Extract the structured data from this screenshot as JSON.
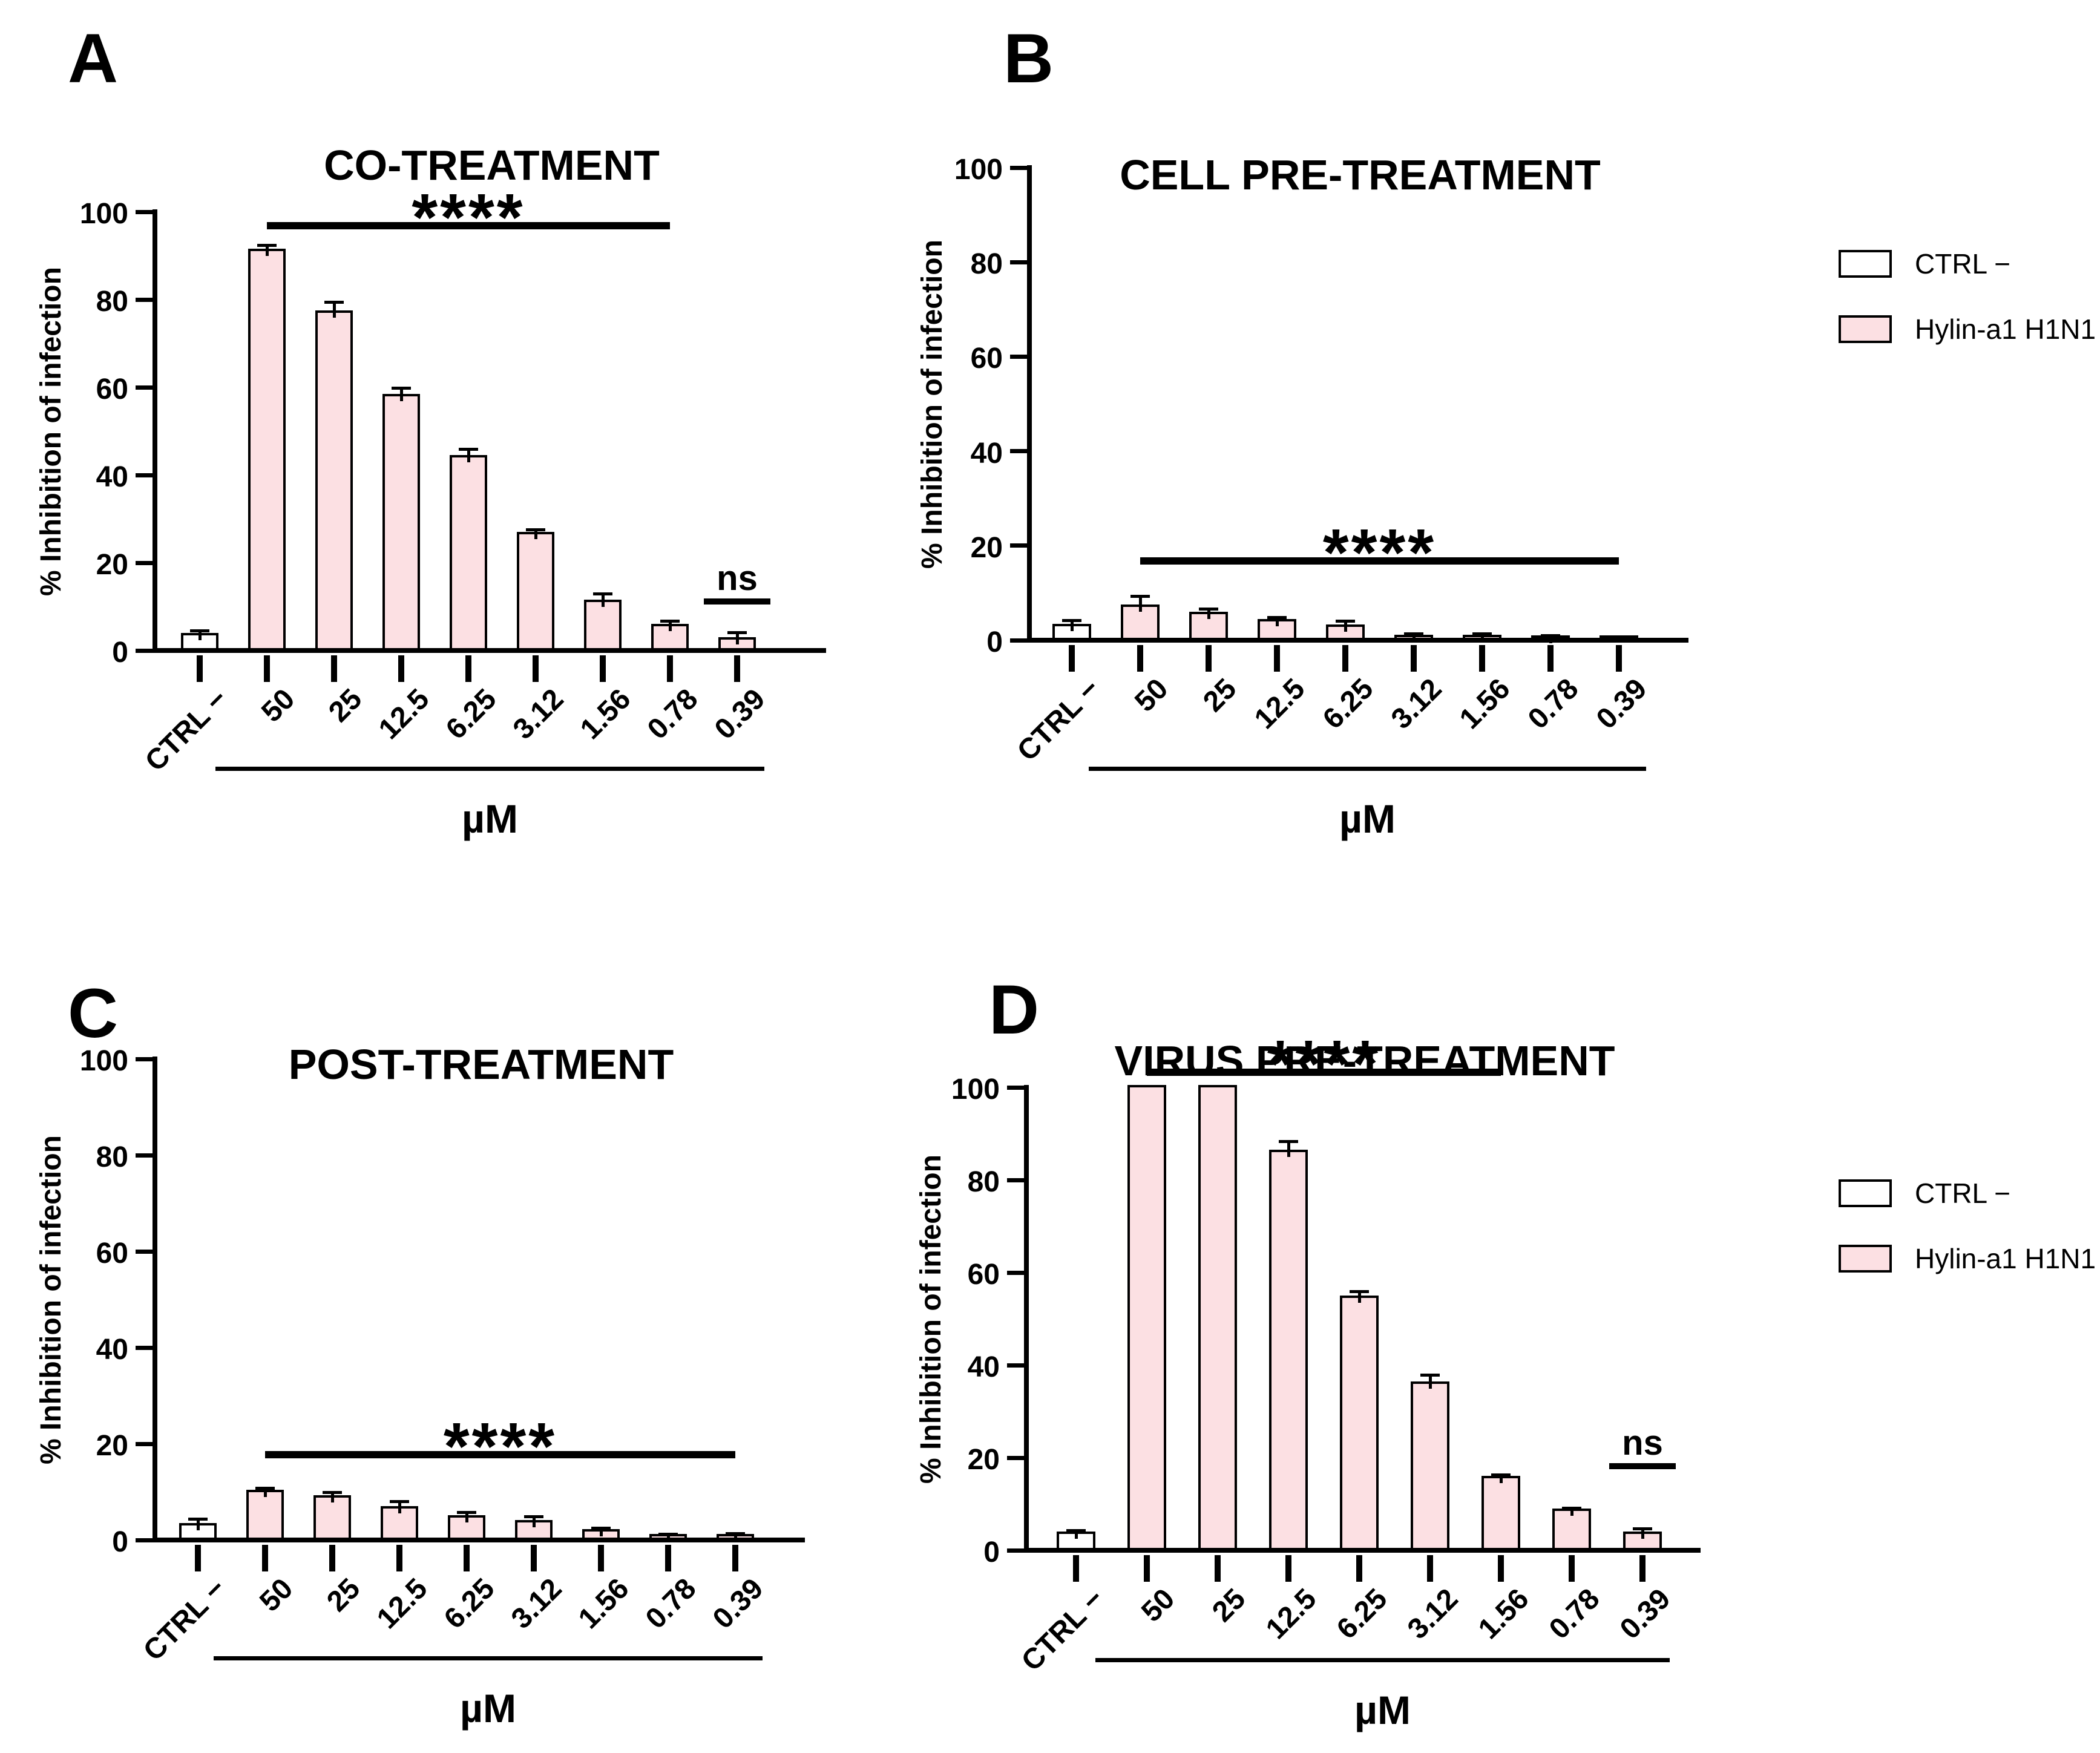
{
  "figure_title": "",
  "legend": {
    "entries": [
      {
        "label": "CTRL −",
        "color": "#ffffff"
      },
      {
        "label": "Hylin-a1 H1N1",
        "color": "#fce0e3"
      }
    ]
  },
  "chart_data": [
    {
      "id": "A",
      "type": "bar",
      "panel_letter": "A",
      "title": "CO-TREATMENT",
      "ylabel": "% Inhibition of infection",
      "xlabel": "µM",
      "ylim": [
        0,
        100
      ],
      "yticks": [
        0,
        20,
        40,
        60,
        80,
        100
      ],
      "grid": false,
      "categories": [
        "CTRL −",
        "50",
        "25",
        "12.5",
        "6.25",
        "3.12",
        "1.56",
        "0.78",
        "0.39"
      ],
      "values": [
        3.5,
        91,
        77,
        58,
        44,
        26.5,
        11,
        5.5,
        2.5
      ],
      "errors": [
        0.6,
        1,
        2,
        1.5,
        1.5,
        0.7,
        1.5,
        0.8,
        1.2
      ],
      "control_fill": "#ffffff",
      "bar_fill": "#fce0e3",
      "annotations": [
        {
          "text": "****",
          "from": 1,
          "to": 7,
          "y": 96
        },
        {
          "text": "ns",
          "from": 8,
          "to": 8,
          "y": 10.5
        }
      ]
    },
    {
      "id": "B",
      "type": "bar",
      "panel_letter": "B",
      "title": "CELL PRE-TREATMENT",
      "ylabel": "% Inhibition of infection",
      "xlabel": "µM",
      "ylim": [
        0,
        100
      ],
      "yticks": [
        0,
        20,
        40,
        60,
        80,
        100
      ],
      "grid": false,
      "categories": [
        "CTRL −",
        "50",
        "25",
        "12.5",
        "6.25",
        "3.12",
        "1.56",
        "0.78",
        "0.39"
      ],
      "values": [
        3,
        7,
        5.5,
        4,
        2.8,
        0.7,
        0.7,
        0.4,
        0.1
      ],
      "errors": [
        0.8,
        2,
        0.8,
        0.5,
        0.9,
        0.3,
        0.3,
        0.2,
        0
      ],
      "control_fill": "#ffffff",
      "bar_fill": "#fce0e3",
      "annotations": [
        {
          "text": "****",
          "from": 1,
          "to": 8,
          "y": 16
        }
      ]
    },
    {
      "id": "C",
      "type": "bar",
      "panel_letter": "C",
      "title": "POST-TREATMENT",
      "ylabel": "% Inhibition of infection",
      "xlabel": "µM",
      "ylim": [
        0,
        100
      ],
      "yticks": [
        0,
        20,
        40,
        60,
        80,
        100
      ],
      "grid": false,
      "categories": [
        "CTRL −",
        "50",
        "25",
        "12.5",
        "6.25",
        "3.12",
        "1.56",
        "0.78",
        "0.39"
      ],
      "values": [
        3,
        10,
        8.8,
        6.5,
        4.6,
        3.6,
        1.8,
        0.7,
        0.8
      ],
      "errors": [
        1,
        0.5,
        0.7,
        1.2,
        0.8,
        0.9,
        0.4,
        0.2,
        0.2
      ],
      "control_fill": "#ffffff",
      "bar_fill": "#fce0e3",
      "annotations": [
        {
          "text": "****",
          "from": 1,
          "to": 8,
          "y": 17
        }
      ]
    },
    {
      "id": "D",
      "type": "bar",
      "panel_letter": "D",
      "title": "VIRUS PRE-TREATMENT",
      "ylabel": "% Inhibition of infection",
      "xlabel": "µM",
      "ylim": [
        0,
        100
      ],
      "yticks": [
        0,
        20,
        40,
        60,
        80,
        100
      ],
      "grid": false,
      "categories": [
        "CTRL −",
        "50",
        "25",
        "12.5",
        "6.25",
        "3.12",
        "1.56",
        "0.78",
        "0.39"
      ],
      "values": [
        3.5,
        100,
        100,
        86,
        54.5,
        36,
        15.5,
        8.5,
        3.5
      ],
      "errors": [
        0.4,
        0,
        0,
        2,
        1,
        1.5,
        0.5,
        0.3,
        0.8
      ],
      "control_fill": "#ffffff",
      "bar_fill": "#fce0e3",
      "annotations": [
        {
          "text": "****",
          "from": 1,
          "to": 6,
          "y": 102.5
        },
        {
          "text": "ns",
          "from": 8,
          "to": 8,
          "y": 17.5
        }
      ]
    }
  ]
}
